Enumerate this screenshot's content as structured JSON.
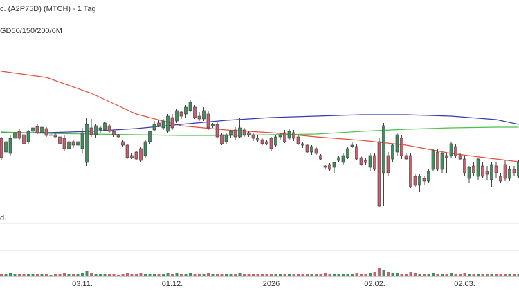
{
  "chart_data": {
    "type": "candlestick",
    "title": "c. (A2P75D) (MTCH) - 1 Tag",
    "subtitle": "GD50/150/200/6M",
    "lower_label": "d.",
    "up_color": "#3f8f5f",
    "down_color": "#c8606f",
    "wick_color": "#444",
    "ylim": [
      0,
      240
    ],
    "volume_ylim": [
      0,
      38
    ],
    "categories": [
      null,
      null,
      null,
      null,
      null,
      null,
      null,
      null,
      null,
      null,
      null,
      null,
      null,
      null,
      null,
      null,
      null,
      null,
      "03.11.",
      null,
      null,
      null,
      null,
      null,
      null,
      null,
      null,
      null,
      null,
      null,
      null,
      null,
      null,
      null,
      null,
      null,
      null,
      null,
      "01.12.",
      null,
      null,
      null,
      null,
      null,
      null,
      null,
      null,
      null,
      null,
      null,
      null,
      null,
      null,
      null,
      null,
      null,
      null,
      null,
      null,
      null,
      "2026",
      null,
      null,
      null,
      null,
      null,
      null,
      null,
      null,
      null,
      null,
      null,
      null,
      null,
      null,
      null,
      null,
      null,
      null,
      null,
      null,
      null,
      null,
      "02.02.",
      null,
      null,
      null,
      null,
      null,
      null,
      null,
      null,
      null,
      null,
      null,
      null,
      null,
      null,
      null,
      null,
      null,
      null,
      null,
      "02.03.",
      null,
      null,
      null,
      null,
      null,
      null,
      null,
      null,
      null,
      null,
      null,
      null
    ],
    "ohlc": [
      [
        100,
        102,
        68,
        72
      ],
      [
        80,
        97,
        75,
        95
      ],
      [
        78,
        105,
        75,
        100
      ],
      [
        100,
        110,
        96,
        108
      ],
      [
        110,
        114,
        98,
        100
      ],
      [
        105,
        108,
        88,
        92
      ],
      [
        95,
        112,
        92,
        110
      ],
      [
        110,
        118,
        108,
        115
      ],
      [
        117,
        120,
        106,
        108
      ],
      [
        108,
        118,
        105,
        116
      ],
      [
        114,
        116,
        102,
        104
      ],
      [
        104,
        106,
        102,
        105
      ],
      [
        105,
        107,
        100,
        102
      ],
      [
        102,
        104,
        90,
        92
      ],
      [
        100,
        104,
        82,
        85
      ],
      [
        85,
        98,
        80,
        95
      ],
      [
        95,
        98,
        86,
        90
      ],
      [
        90,
        96,
        85,
        95
      ],
      [
        85,
        115,
        78,
        108
      ],
      [
        65,
        130,
        60,
        120
      ],
      [
        115,
        128,
        102,
        105
      ],
      [
        105,
        120,
        100,
        118
      ],
      [
        112,
        118,
        108,
        115
      ],
      [
        112,
        124,
        110,
        122
      ],
      [
        118,
        120,
        108,
        110
      ],
      [
        110,
        112,
        102,
        105
      ],
      [
        105,
        106,
        100,
        102
      ],
      [
        95,
        98,
        88,
        90
      ],
      [
        90,
        92,
        70,
        72
      ],
      [
        75,
        78,
        70,
        72
      ],
      [
        80,
        82,
        68,
        70
      ],
      [
        85,
        88,
        66,
        68
      ],
      [
        75,
        98,
        72,
        95
      ],
      [
        95,
        108,
        92,
        110
      ],
      [
        112,
        125,
        110,
        120
      ],
      [
        122,
        126,
        116,
        118
      ],
      [
        115,
        128,
        112,
        125
      ],
      [
        110,
        135,
        108,
        132
      ],
      [
        130,
        135,
        112,
        115
      ],
      [
        125,
        142,
        122,
        140
      ],
      [
        138,
        140,
        128,
        132
      ],
      [
        135,
        148,
        130,
        145
      ],
      [
        140,
        155,
        138,
        152
      ],
      [
        145,
        148,
        128,
        130
      ],
      [
        132,
        138,
        125,
        128
      ],
      [
        128,
        145,
        125,
        140
      ],
      [
        135,
        140,
        112,
        115
      ],
      [
        118,
        122,
        115,
        120
      ],
      [
        120,
        124,
        100,
        102
      ],
      [
        105,
        108,
        90,
        92
      ],
      [
        95,
        108,
        92,
        105
      ],
      [
        105,
        112,
        100,
        110
      ],
      [
        112,
        116,
        98,
        102
      ],
      [
        102,
        130,
        100,
        115
      ],
      [
        112,
        115,
        102,
        105
      ],
      [
        108,
        110,
        102,
        105
      ],
      [
        105,
        108,
        96,
        100
      ],
      [
        100,
        104,
        95,
        97
      ],
      [
        98,
        100,
        90,
        92
      ],
      [
        95,
        97,
        90,
        92
      ],
      [
        100,
        102,
        82,
        85
      ],
      [
        90,
        104,
        88,
        102
      ],
      [
        102,
        108,
        98,
        105
      ],
      [
        108,
        112,
        93,
        95
      ],
      [
        100,
        114,
        97,
        110
      ],
      [
        108,
        112,
        96,
        100
      ],
      [
        102,
        105,
        90,
        92
      ],
      [
        92,
        94,
        86,
        90
      ],
      [
        90,
        92,
        78,
        80
      ],
      [
        80,
        90,
        76,
        88
      ],
      [
        85,
        88,
        76,
        78
      ],
      [
        75,
        77,
        68,
        70
      ],
      [
        60,
        62,
        55,
        58
      ],
      [
        62,
        64,
        52,
        55
      ],
      [
        58,
        66,
        50,
        65
      ],
      [
        68,
        75,
        65,
        72
      ],
      [
        65,
        78,
        62,
        75
      ],
      [
        72,
        88,
        70,
        85
      ],
      [
        88,
        95,
        86,
        90
      ],
      [
        88,
        92,
        68,
        70
      ],
      [
        72,
        74,
        60,
        62
      ],
      [
        68,
        72,
        62,
        65
      ],
      [
        58,
        78,
        52,
        75
      ],
      [
        75,
        78,
        52,
        55
      ],
      [
        95,
        100,
        0,
        2
      ],
      [
        50,
        122,
        2,
        118
      ],
      [
        75,
        80,
        45,
        50
      ],
      [
        70,
        92,
        65,
        90
      ],
      [
        80,
        108,
        75,
        105
      ],
      [
        100,
        105,
        70,
        75
      ],
      [
        75,
        78,
        68,
        70
      ],
      [
        75,
        78,
        28,
        30
      ],
      [
        45,
        48,
        30,
        32
      ],
      [
        32,
        48,
        22,
        45
      ],
      [
        42,
        45,
        32,
        38
      ],
      [
        38,
        55,
        35,
        52
      ],
      [
        55,
        85,
        52,
        82
      ],
      [
        80,
        84,
        52,
        55
      ],
      [
        55,
        80,
        50,
        78
      ],
      [
        75,
        78,
        50,
        72
      ],
      [
        75,
        95,
        72,
        92
      ],
      [
        88,
        92,
        72,
        75
      ],
      [
        75,
        78,
        68,
        70
      ],
      [
        70,
        74,
        45,
        50
      ],
      [
        42,
        60,
        35,
        58
      ],
      [
        60,
        65,
        45,
        50
      ],
      [
        45,
        72,
        40,
        70
      ],
      [
        60,
        65,
        42,
        45
      ],
      [
        52,
        60,
        40,
        48
      ],
      [
        40,
        65,
        30,
        62
      ],
      [
        60,
        65,
        42,
        50
      ],
      [
        45,
        50,
        35,
        38
      ],
      [
        62,
        68,
        38,
        42
      ],
      [
        42,
        60,
        38,
        55
      ],
      [
        55,
        60,
        45,
        50
      ],
      [
        45,
        68,
        42,
        65
      ]
    ],
    "volume": [
      4,
      3,
      5,
      3,
      4,
      3,
      3,
      4,
      3,
      3,
      3,
      2,
      3,
      4,
      5,
      3,
      3,
      4,
      5,
      8,
      5,
      4,
      3,
      4,
      3,
      3,
      2,
      4,
      5,
      3,
      4,
      5,
      4,
      4,
      3,
      3,
      4,
      5,
      4,
      5,
      3,
      4,
      5,
      4,
      3,
      4,
      5,
      3,
      4,
      4,
      3,
      3,
      4,
      5,
      3,
      3,
      3,
      4,
      3,
      3,
      4,
      3,
      3,
      4,
      4,
      3,
      3,
      3,
      4,
      3,
      4,
      3,
      5,
      4,
      3,
      3,
      4,
      4,
      3,
      5,
      4,
      3,
      5,
      6,
      12,
      10,
      6,
      5,
      5,
      4,
      4,
      7,
      5,
      4,
      3,
      4,
      5,
      4,
      4,
      3,
      5,
      4,
      3,
      5,
      4,
      3,
      4,
      4,
      3,
      4,
      3,
      3,
      4,
      3,
      3,
      4
    ],
    "ma": [
      {
        "color": "#e0503c",
        "x": [
          0,
          10,
          20,
          30,
          40,
          50,
          60,
          70,
          80,
          90,
          100,
          110,
          115
        ],
        "values": [
          197,
          188,
          165,
          135,
          118,
          112,
          108,
          102,
          97,
          90,
          78,
          70,
          66
        ]
      },
      {
        "color": "#3a3ab0",
        "x": [
          0,
          10,
          20,
          30,
          40,
          50,
          60,
          70,
          80,
          90,
          100,
          110,
          115
        ],
        "values": [
          108,
          108,
          110,
          114,
          120,
          126,
          130,
          132,
          134,
          134,
          132,
          127,
          120
        ]
      },
      {
        "color": "#4cc04c",
        "x": [
          0,
          10,
          20,
          30,
          40,
          50,
          60,
          70,
          80,
          90,
          100,
          110,
          115
        ],
        "values": [
          109,
          107,
          106,
          105,
          104,
          104,
          105,
          106,
          110,
          113,
          115,
          116,
          116
        ]
      }
    ]
  }
}
